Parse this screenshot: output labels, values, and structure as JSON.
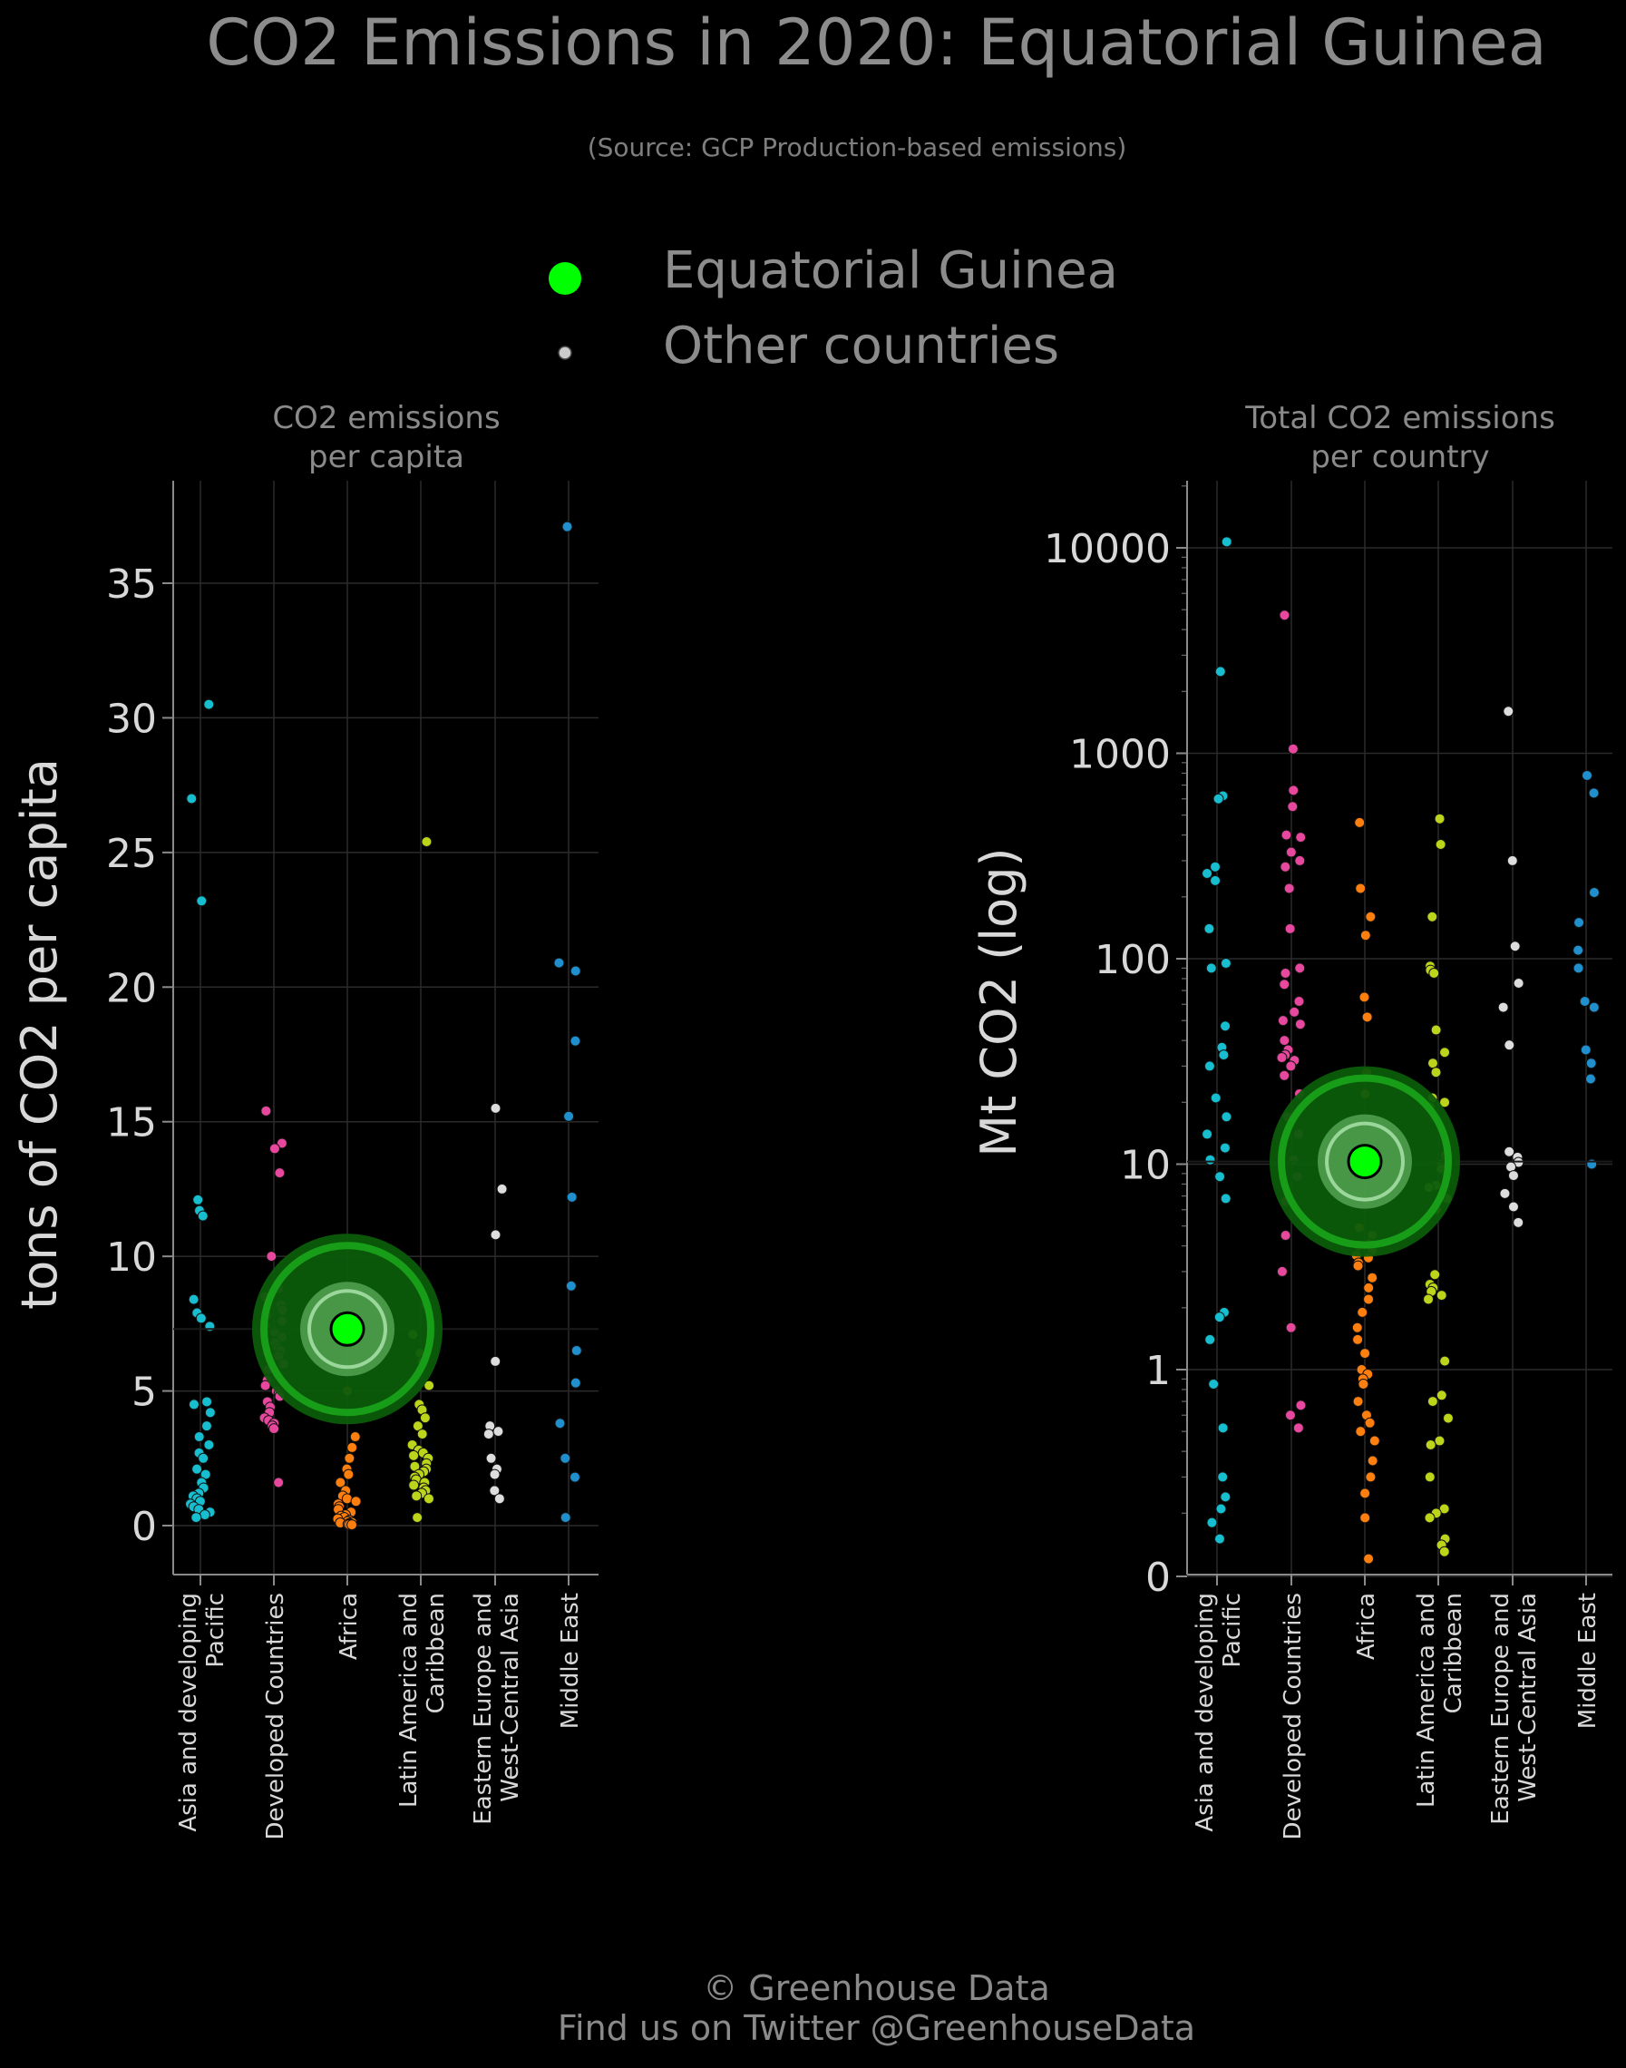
{
  "header": {
    "title": "CO2 Emissions in 2020: Equatorial Guinea",
    "subtitle": "(Source: GCP Production-based emissions)"
  },
  "legend": {
    "highlight_label": "Equatorial Guinea",
    "others_label": "Other countries",
    "highlight_color": "#00ff00",
    "others_color": "#cccccc"
  },
  "footer": {
    "line1": "© Greenhouse Data",
    "line2": "Find us on Twitter @GreenhouseData"
  },
  "colors": {
    "Asia and developing Pacific": "#17becf",
    "Developed Countries": "#e7489e",
    "Africa": "#ff7f0e",
    "Latin America and Caribbean": "#bcd41a",
    "Eastern Europe and West-Central Asia": "#dddddd",
    "Middle East": "#1f8fce"
  },
  "chart_data": [
    {
      "type": "scatter",
      "title": "CO2 emissions\nper capita",
      "ylabel": "tons of CO2 per capita",
      "yscale": "linear",
      "ylim": [
        -1.8,
        39
      ],
      "yticks": [
        0,
        5,
        10,
        15,
        20,
        25,
        30,
        35
      ],
      "ytick_labels": [
        "0",
        "5",
        "10",
        "15",
        "20",
        "25",
        "30",
        "35"
      ],
      "grid": true,
      "categories": [
        "Asia and developing\nPacific",
        "Developed Countries",
        "Africa",
        "Latin America and\nCaribbean",
        "Eastern Europe and\nWest-Central Asia",
        "Middle East"
      ],
      "highlight": {
        "name": "Equatorial Guinea",
        "category": "Africa",
        "value": 7.3
      },
      "series": [
        {
          "category": "Asia and developing Pacific",
          "values": [
            30.5,
            27.0,
            23.2,
            12.1,
            11.7,
            11.5,
            8.4,
            7.9,
            7.7,
            7.4,
            4.6,
            4.5,
            4.2,
            3.7,
            3.3,
            3.0,
            2.7,
            2.5,
            2.1,
            1.9,
            1.6,
            1.4,
            1.2,
            1.1,
            1.0,
            0.9,
            0.8,
            0.7,
            0.6,
            0.5,
            0.4,
            0.3
          ]
        },
        {
          "category": "Developed Countries",
          "values": [
            15.4,
            14.2,
            14.0,
            13.1,
            10.0,
            8.8,
            8.5,
            8.2,
            8.0,
            7.8,
            7.6,
            7.4,
            7.2,
            7.0,
            6.8,
            6.6,
            6.5,
            6.3,
            6.0,
            5.8,
            5.6,
            5.4,
            5.2,
            5.0,
            4.9,
            4.8,
            4.6,
            4.4,
            4.2,
            4.0,
            3.9,
            3.8,
            3.7,
            3.6,
            1.6
          ]
        },
        {
          "category": "Africa",
          "values": [
            5.0,
            3.3,
            2.9,
            2.5,
            2.1,
            1.9,
            1.6,
            1.3,
            1.1,
            1.0,
            0.9,
            0.8,
            0.7,
            0.6,
            0.5,
            0.4,
            0.35,
            0.3,
            0.25,
            0.2,
            0.15,
            0.12,
            0.1,
            0.08,
            0.06,
            0.05,
            0.04,
            0.03
          ]
        },
        {
          "category": "Latin America and Caribbean",
          "values": [
            25.4,
            8.2,
            7.1,
            6.4,
            6.1,
            5.2,
            4.5,
            4.3,
            4.0,
            3.7,
            3.4,
            3.0,
            2.8,
            2.7,
            2.6,
            2.5,
            2.3,
            2.2,
            2.1,
            2.0,
            1.9,
            1.8,
            1.7,
            1.6,
            1.5,
            1.4,
            1.3,
            1.2,
            1.1,
            1.0,
            0.3
          ]
        },
        {
          "category": "Eastern Europe and West-Central Asia",
          "values": [
            15.5,
            12.5,
            10.8,
            6.1,
            3.7,
            3.5,
            3.4,
            2.5,
            2.1,
            1.9,
            1.3,
            1.0
          ]
        },
        {
          "category": "Middle East",
          "values": [
            37.1,
            20.9,
            20.6,
            18.0,
            15.2,
            12.2,
            8.9,
            6.5,
            5.3,
            3.8,
            2.5,
            1.8,
            0.3
          ]
        }
      ]
    },
    {
      "type": "scatter",
      "title": "Total CO2 emissions\nper country",
      "ylabel": "Mt CO2 (log)",
      "yscale": "log",
      "ylim": [
        -0.1,
        20000
      ],
      "yticks": [
        0,
        1,
        10,
        100,
        1000,
        10000
      ],
      "ytick_labels": [
        "0",
        "1",
        "10",
        "100",
        "1000",
        "10000"
      ],
      "grid": true,
      "categories": [
        "Asia and developing\nPacific",
        "Developed Countries",
        "Africa",
        "Latin America and\nCaribbean",
        "Eastern Europe and\nWest-Central Asia",
        "Middle East"
      ],
      "highlight": {
        "name": "Equatorial Guinea",
        "category": "Africa",
        "value": 10.3
      },
      "series": [
        {
          "category": "Asia and developing Pacific",
          "values": [
            10700,
            2500,
            620,
            600,
            280,
            260,
            240,
            140,
            95,
            90,
            47,
            37,
            34,
            30,
            21,
            17,
            14,
            12,
            10.5,
            8.7,
            6.8,
            1.9,
            1.8,
            1.4,
            0.85,
            0.52,
            0.3,
            0.24,
            0.21,
            0.18,
            0.15
          ]
        },
        {
          "category": "Developed Countries",
          "values": [
            4700,
            1050,
            660,
            550,
            400,
            390,
            330,
            300,
            280,
            220,
            140,
            90,
            85,
            75,
            62,
            55,
            50,
            48,
            40,
            36,
            34,
            33,
            32,
            30,
            27,
            22,
            17,
            14,
            10.5,
            8.7,
            7.1,
            6.6,
            4.5,
            3.0,
            1.6,
            0.67,
            0.6,
            0.52
          ]
        },
        {
          "category": "Africa",
          "values": [
            460,
            220,
            160,
            130,
            65,
            52,
            28,
            22,
            16,
            15,
            13,
            12,
            8.5,
            7.0,
            6.5,
            4.9,
            4.5,
            4.1,
            4.0,
            3.8,
            3.6,
            3.5,
            3.3,
            3.2,
            2.8,
            2.5,
            2.2,
            1.9,
            1.6,
            1.4,
            1.2,
            1.0,
            0.95,
            0.9,
            0.85,
            0.7,
            0.6,
            0.55,
            0.5,
            0.45,
            0.36,
            0.3,
            0.25,
            0.19,
            0.12
          ]
        },
        {
          "category": "Latin America and Caribbean",
          "values": [
            480,
            360,
            160,
            92,
            88,
            85,
            45,
            35,
            31,
            28,
            21,
            20,
            19,
            11,
            10.5,
            10,
            9.5,
            8.9,
            7.9,
            7.7,
            6.8,
            6.0,
            2.9,
            2.6,
            2.5,
            2.4,
            2.3,
            2.2,
            1.1,
            0.75,
            0.7,
            0.58,
            0.45,
            0.43,
            0.3,
            0.21,
            0.2,
            0.19,
            0.15,
            0.14,
            0.13
          ]
        },
        {
          "category": "Eastern Europe and West-Central Asia",
          "values": [
            1600,
            300,
            115,
            76,
            58,
            38,
            11.5,
            10.8,
            10.2,
            9.7,
            8.8,
            7.2,
            6.2,
            5.2
          ]
        },
        {
          "category": "Middle East",
          "values": [
            780,
            640,
            210,
            150,
            110,
            90,
            62,
            58,
            36,
            31,
            26,
            10
          ]
        }
      ]
    }
  ]
}
